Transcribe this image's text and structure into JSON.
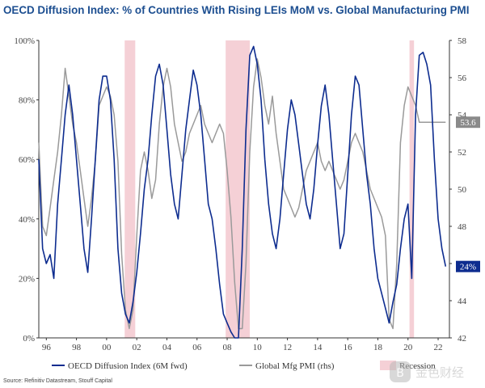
{
  "chart_data": {
    "type": "line",
    "title": "OECD Diffusion Index: % of Countries With Rising LEIs MoM vs. Global Manufacturing PMI",
    "xlabel": "",
    "ylabel_left": "",
    "ylabel_right": "",
    "xlim": [
      1995.5,
      2022.75
    ],
    "ylim_left": [
      0,
      100
    ],
    "ylim_right": [
      42,
      58
    ],
    "x_ticks": [
      1996,
      1998,
      2000,
      2002,
      2004,
      2006,
      2008,
      2010,
      2012,
      2014,
      2016,
      2018,
      2020,
      2022
    ],
    "x_tick_labels": [
      "96",
      "98",
      "00",
      "02",
      "04",
      "06",
      "08",
      "10",
      "12",
      "14",
      "16",
      "18",
      "20",
      "22"
    ],
    "y_ticks_left": [
      0,
      20,
      40,
      60,
      80,
      100
    ],
    "y_tick_labels_left": [
      "0%",
      "20%",
      "40%",
      "60%",
      "80%",
      "100%"
    ],
    "y_ticks_right": [
      42,
      44,
      46,
      48,
      50,
      52,
      54,
      56,
      58
    ],
    "y_tick_labels_right": [
      "42",
      "44",
      "46",
      "48",
      "50",
      "52",
      "54",
      "56",
      "58"
    ],
    "grid": false,
    "legend_position": "bottom",
    "recessions": [
      [
        2001.2,
        2001.9
      ],
      [
        2007.9,
        2009.5
      ],
      [
        2020.1,
        2020.4
      ]
    ],
    "series": [
      {
        "name": "OECD Diffusion Index (6M fwd)",
        "axis": "left",
        "color": "#0d2c8f",
        "x": [
          1995.5,
          1995.75,
          1996.0,
          1996.25,
          1996.5,
          1996.75,
          1997.0,
          1997.25,
          1997.5,
          1997.75,
          1998.0,
          1998.25,
          1998.5,
          1998.75,
          1999.0,
          1999.25,
          1999.5,
          1999.75,
          2000.0,
          2000.25,
          2000.5,
          2000.75,
          2001.0,
          2001.25,
          2001.5,
          2001.75,
          2002.0,
          2002.25,
          2002.5,
          2002.75,
          2003.0,
          2003.25,
          2003.5,
          2003.75,
          2004.0,
          2004.25,
          2004.5,
          2004.75,
          2005.0,
          2005.25,
          2005.5,
          2005.75,
          2006.0,
          2006.25,
          2006.5,
          2006.75,
          2007.0,
          2007.25,
          2007.5,
          2007.75,
          2008.0,
          2008.25,
          2008.5,
          2008.75,
          2009.0,
          2009.25,
          2009.5,
          2009.75,
          2010.0,
          2010.25,
          2010.5,
          2010.75,
          2011.0,
          2011.25,
          2011.5,
          2011.75,
          2012.0,
          2012.25,
          2012.5,
          2012.75,
          2013.0,
          2013.25,
          2013.5,
          2013.75,
          2014.0,
          2014.25,
          2014.5,
          2014.75,
          2015.0,
          2015.25,
          2015.5,
          2015.75,
          2016.0,
          2016.25,
          2016.5,
          2016.75,
          2017.0,
          2017.25,
          2017.5,
          2017.75,
          2018.0,
          2018.25,
          2018.5,
          2018.75,
          2019.0,
          2019.25,
          2019.5,
          2019.75,
          2020.0,
          2020.25,
          2020.5,
          2020.75,
          2021.0,
          2021.25,
          2021.5,
          2021.75,
          2022.0,
          2022.25,
          2022.5
        ],
        "values": [
          60,
          30,
          25,
          28,
          20,
          45,
          60,
          75,
          85,
          75,
          60,
          45,
          30,
          22,
          40,
          60,
          80,
          88,
          88,
          80,
          60,
          30,
          15,
          8,
          5,
          12,
          22,
          35,
          50,
          60,
          75,
          88,
          92,
          85,
          70,
          55,
          45,
          40,
          55,
          70,
          80,
          90,
          85,
          75,
          60,
          45,
          40,
          30,
          18,
          8,
          5,
          2,
          0,
          0,
          30,
          70,
          95,
          98,
          92,
          80,
          60,
          45,
          35,
          30,
          40,
          55,
          70,
          80,
          75,
          65,
          55,
          45,
          40,
          50,
          65,
          78,
          85,
          75,
          60,
          45,
          30,
          35,
          55,
          75,
          88,
          85,
          70,
          55,
          45,
          30,
          20,
          15,
          10,
          5,
          12,
          18,
          30,
          40,
          45,
          20,
          75,
          95,
          96,
          92,
          85,
          60,
          40,
          30,
          24
        ]
      },
      {
        "name": "Global Mfg PMI (rhs)",
        "axis": "right",
        "color": "#9a9a9a",
        "x": [
          1995.5,
          1995.75,
          1996.0,
          1996.25,
          1996.5,
          1996.75,
          1997.0,
          1997.25,
          1997.5,
          1997.75,
          1998.0,
          1998.25,
          1998.5,
          1998.75,
          1999.0,
          1999.25,
          1999.5,
          1999.75,
          2000.0,
          2000.25,
          2000.5,
          2000.75,
          2001.0,
          2001.25,
          2001.5,
          2001.75,
          2002.0,
          2002.25,
          2002.5,
          2002.75,
          2003.0,
          2003.25,
          2003.5,
          2003.75,
          2004.0,
          2004.25,
          2004.5,
          2004.75,
          2005.0,
          2005.25,
          2005.5,
          2005.75,
          2006.0,
          2006.25,
          2006.5,
          2006.75,
          2007.0,
          2007.25,
          2007.5,
          2007.75,
          2008.0,
          2008.25,
          2008.5,
          2008.75,
          2009.0,
          2009.25,
          2009.5,
          2009.75,
          2010.0,
          2010.25,
          2010.5,
          2010.75,
          2011.0,
          2011.25,
          2011.5,
          2011.75,
          2012.0,
          2012.25,
          2012.5,
          2012.75,
          2013.0,
          2013.25,
          2013.5,
          2013.75,
          2014.0,
          2014.25,
          2014.5,
          2014.75,
          2015.0,
          2015.25,
          2015.5,
          2015.75,
          2016.0,
          2016.25,
          2016.5,
          2016.75,
          2017.0,
          2017.25,
          2017.5,
          2017.75,
          2018.0,
          2018.25,
          2018.5,
          2018.75,
          2019.0,
          2019.25,
          2019.5,
          2019.75,
          2020.0,
          2020.25,
          2020.5,
          2020.75,
          2021.0,
          2021.25,
          2021.5,
          2021.75,
          2022.0,
          2022.25,
          2022.5
        ],
        "values": [
          52.5,
          48.0,
          47.5,
          49.0,
          50.5,
          52.0,
          54.0,
          56.5,
          55.0,
          53.5,
          52.5,
          51.0,
          49.5,
          48.0,
          49.5,
          51.5,
          54.5,
          55.0,
          55.5,
          55.0,
          54.0,
          51.5,
          46.5,
          43.5,
          42.5,
          43.5,
          47.5,
          51.0,
          52.0,
          51.0,
          49.5,
          50.5,
          53.5,
          55.5,
          56.5,
          55.5,
          53.5,
          52.5,
          51.5,
          52.0,
          53.0,
          53.5,
          54.0,
          54.5,
          53.5,
          53.0,
          52.5,
          53.0,
          53.5,
          53.0,
          51.0,
          48.5,
          45.0,
          42.5,
          42.5,
          46.0,
          52.0,
          55.5,
          57.0,
          56.0,
          54.5,
          53.5,
          55.0,
          53.0,
          51.5,
          50.0,
          49.5,
          49.0,
          48.5,
          49.0,
          50.0,
          51.0,
          51.5,
          52.0,
          52.5,
          51.5,
          51.0,
          51.5,
          51.0,
          50.5,
          50.0,
          50.5,
          51.5,
          52.5,
          53.0,
          52.5,
          52.0,
          51.0,
          50.0,
          49.5,
          49.0,
          48.5,
          47.5,
          43.0,
          42.5,
          46.0,
          52.5,
          54.5,
          55.5,
          55.0,
          54.5,
          53.6,
          53.6,
          53.6,
          53.6,
          53.6,
          53.6,
          53.6,
          53.6
        ]
      }
    ],
    "end_labels": [
      {
        "text": "53.6",
        "series": 1,
        "color": "#8a8a8a"
      },
      {
        "text": "24%",
        "series": 0,
        "color": "#0d2c8f"
      }
    ],
    "legend": [
      {
        "label": "OECD Diffusion Index (6M fwd)",
        "type": "line",
        "color": "#0d2c8f"
      },
      {
        "label": "Global Mfg PMI (rhs)",
        "type": "line",
        "color": "#9a9a9a"
      },
      {
        "label": "Recession",
        "type": "box",
        "color": "#f5d0d6"
      }
    ],
    "recession_color": "#f5d0d6"
  },
  "source": "Source: Refinitiv Datastream, Stouff Capital"
}
